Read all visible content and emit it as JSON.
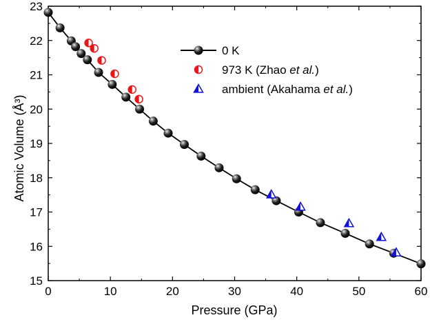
{
  "chart_data": {
    "type": "scatter",
    "title": "",
    "xlabel": "Pressure (GPa)",
    "ylabel": "Atomic Volume (Å³)",
    "xlim": [
      0,
      60
    ],
    "ylim": [
      15,
      23
    ],
    "xticks": [
      0,
      10,
      20,
      30,
      40,
      50,
      60
    ],
    "yticks": [
      15,
      16,
      17,
      18,
      19,
      20,
      21,
      22,
      23
    ],
    "grid": false,
    "legend_position": "top-right",
    "series": [
      {
        "name": "0 K",
        "marker": "black-sphere-with-line",
        "color": "#000000",
        "x": [
          0.0,
          1.9,
          3.7,
          4.4,
          5.3,
          6.3,
          8.1,
          10.3,
          12.5,
          14.7,
          16.9,
          19.3,
          21.9,
          24.6,
          27.5,
          30.3,
          33.3,
          36.7,
          40.3,
          43.8,
          47.8,
          51.7,
          55.6,
          60.0
        ],
        "y": [
          22.82,
          22.37,
          21.99,
          21.82,
          21.62,
          21.44,
          21.07,
          20.72,
          20.35,
          20.0,
          19.65,
          19.3,
          18.97,
          18.63,
          18.29,
          17.97,
          17.65,
          17.33,
          17.0,
          16.69,
          16.38,
          16.07,
          15.8,
          15.49
        ]
      },
      {
        "name": "973 K (Zhao et al.)",
        "name_parts": [
          "973 K (Zhao ",
          "et al.",
          ")"
        ],
        "marker": "half-filled-circle",
        "color": "#e8161b",
        "x": [
          6.5,
          7.4,
          8.6,
          10.7,
          13.5,
          14.6
        ],
        "y": [
          21.93,
          21.77,
          21.42,
          21.03,
          20.57,
          20.29
        ]
      },
      {
        "name": "ambient (Akahama et al.)",
        "name_parts": [
          "ambient (Akahama ",
          "et al.",
          ")"
        ],
        "marker": "half-filled-triangle",
        "color": "#1212d8",
        "x": [
          35.9,
          40.6,
          48.4,
          53.6,
          56.0
        ],
        "y": [
          17.51,
          17.15,
          16.67,
          16.27,
          15.82
        ]
      }
    ]
  }
}
